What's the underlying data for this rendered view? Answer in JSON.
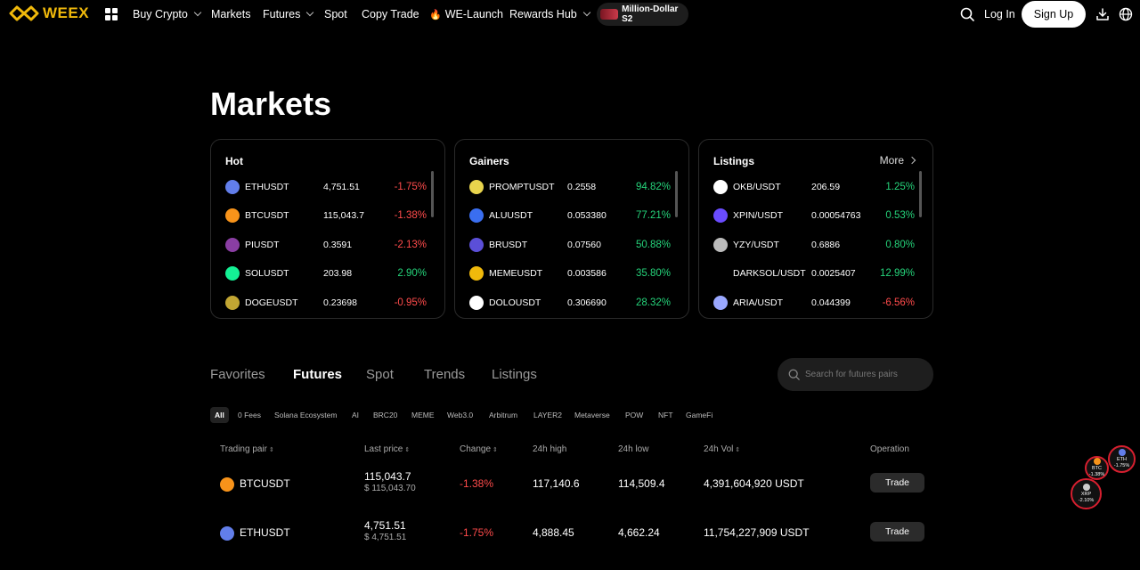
{
  "brand": {
    "name": "WEEX",
    "color": "#f0b90b"
  },
  "nav": {
    "buy_crypto": "Buy Crypto",
    "markets": "Markets",
    "futures": "Futures",
    "spot": "Spot",
    "copy_trade": "Copy Trade",
    "we_launch": "WE-Launch",
    "rewards_hub": "Rewards Hub",
    "promo": "Million-Dollar S2",
    "login": "Log In",
    "signup": "Sign Up"
  },
  "page_title": "Markets",
  "cards": {
    "hot": {
      "title": "Hot",
      "rows": [
        {
          "symbol": "ETHUSDT",
          "price": "4,751.51",
          "change": "-1.75%",
          "icon": "eth-icon",
          "color": "#627eea"
        },
        {
          "symbol": "BTCUSDT",
          "price": "115,043.7",
          "change": "-1.38%",
          "icon": "btc-icon",
          "color": "#f7931a"
        },
        {
          "symbol": "PIUSDT",
          "price": "0.3591",
          "change": "-2.13%",
          "icon": "pi-icon",
          "color": "#8a3ea3"
        },
        {
          "symbol": "SOLUSDT",
          "price": "203.98",
          "change": "2.90%",
          "icon": "sol-icon",
          "color": "#14f195"
        },
        {
          "symbol": "DOGEUSDT",
          "price": "0.23698",
          "change": "-0.95%",
          "icon": "doge-icon",
          "color": "#c2a633"
        }
      ]
    },
    "gainers": {
      "title": "Gainers",
      "rows": [
        {
          "symbol": "PROMPTUSDT",
          "price": "0.2558",
          "change": "94.82%",
          "icon": "prompt-icon",
          "color": "#e8d44d"
        },
        {
          "symbol": "ALUUSDT",
          "price": "0.053380",
          "change": "77.21%",
          "icon": "alu-icon",
          "color": "#3a6ef0"
        },
        {
          "symbol": "BRUSDT",
          "price": "0.07560",
          "change": "50.88%",
          "icon": "br-icon",
          "color": "#5b4fd8"
        },
        {
          "symbol": "MEMEUSDT",
          "price": "0.003586",
          "change": "35.80%",
          "icon": "meme-icon",
          "color": "#f0b90b"
        },
        {
          "symbol": "DOLOUSDT",
          "price": "0.306690",
          "change": "28.32%",
          "icon": "dolo-icon",
          "color": "#ffffff"
        }
      ]
    },
    "listings": {
      "title": "Listings",
      "more": "More",
      "rows": [
        {
          "symbol": "OKB/USDT",
          "price": "206.59",
          "change": "1.25%",
          "icon": "okb-icon",
          "color": "#ffffff"
        },
        {
          "symbol": "XPIN/USDT",
          "price": "0.00054763",
          "change": "0.53%",
          "icon": "xpin-icon",
          "color": "#6a4cff"
        },
        {
          "symbol": "YZY/USDT",
          "price": "0.6886",
          "change": "0.80%",
          "icon": "yzy-icon",
          "color": "#bbbbbb"
        },
        {
          "symbol": "DARKSOL/USDT",
          "price": "0.0025407",
          "change": "12.99%",
          "icon": "",
          "color": ""
        },
        {
          "symbol": "ARIA/USDT",
          "price": "0.044399",
          "change": "-6.56%",
          "icon": "aria-icon",
          "color": "#9aa8ff"
        }
      ]
    }
  },
  "tabs": [
    "Favorites",
    "Futures",
    "Spot",
    "Trends",
    "Listings"
  ],
  "active_tab": "Futures",
  "search": {
    "placeholder": "Search for futures pairs"
  },
  "filters": [
    "All",
    "0 Fees",
    "Solana Ecosystem",
    "AI",
    "BRC20",
    "MEME",
    "Web3.0",
    "Arbitrum",
    "LAYER2",
    "Metaverse",
    "POW",
    "NFT",
    "GameFi"
  ],
  "table": {
    "headers": {
      "pair": "Trading pair",
      "last_price": "Last price",
      "change": "Change",
      "high": "24h high",
      "low": "24h low",
      "vol": "24h Vol",
      "operation": "Operation"
    },
    "rows": [
      {
        "pair": "BTCUSDT",
        "last_price": "115,043.7",
        "usd": "$ 115,043.70",
        "change": "-1.38%",
        "high": "117,140.6",
        "low": "114,509.4",
        "vol": "4,391,604,920 USDT",
        "trade": "Trade",
        "color": "#f7931a"
      },
      {
        "pair": "ETHUSDT",
        "last_price": "4,751.51",
        "usd": "$ 4,751.51",
        "change": "-1.75%",
        "high": "4,888.45",
        "low": "4,662.24",
        "vol": "11,754,227,909 USDT",
        "trade": "Trade",
        "color": "#627eea"
      }
    ]
  },
  "bubbles": [
    {
      "symbol": "ETH",
      "change": "-1.75%",
      "color": "#627eea"
    },
    {
      "symbol": "BTC",
      "change": "-1.38%",
      "color": "#f7931a"
    },
    {
      "symbol": "XRP",
      "change": "-2.10%",
      "color": "#cccccc"
    }
  ]
}
